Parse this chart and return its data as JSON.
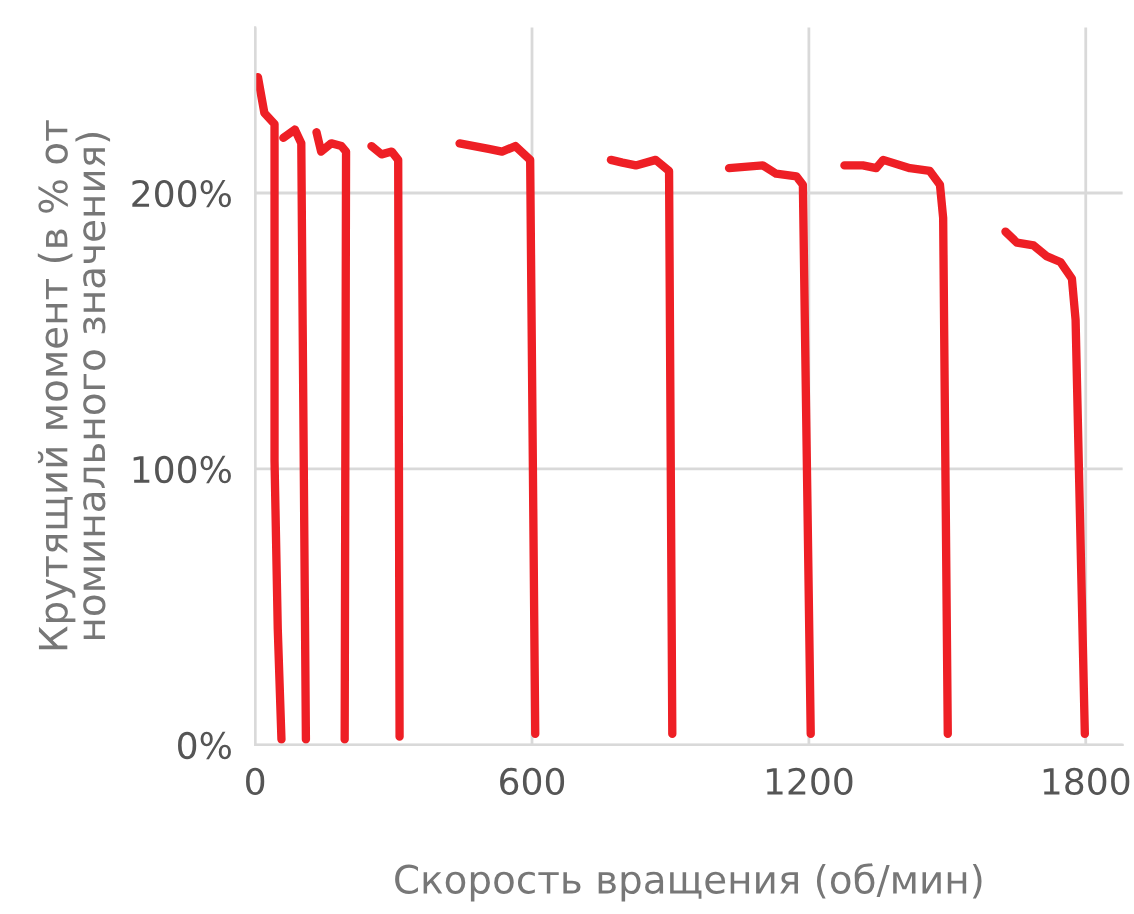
{
  "chart_data": {
    "type": "line",
    "xlabel": "Скорость вращения (об/мин)",
    "ylabel": "Крутящий момент (в % от\nноминального значения)",
    "xlim": [
      0,
      1880
    ],
    "ylim": [
      0,
      260
    ],
    "xticks": [
      0,
      600,
      1200,
      1800
    ],
    "yticks": [
      {
        "value": 0,
        "label": "0%"
      },
      {
        "value": 100,
        "label": "100%"
      },
      {
        "value": 200,
        "label": "200%"
      }
    ],
    "grid": true,
    "marker": "none",
    "line_style": "solid",
    "series": [
      {
        "color": "#ee1f25",
        "x": [
          6,
          20,
          42,
          42,
          49,
          57
        ],
        "values": [
          242,
          229,
          225,
          103,
          42,
          2
        ]
      },
      {
        "color": "#ee1f25",
        "x": [
          61,
          86,
          100,
          103,
          110
        ],
        "values": [
          220,
          223,
          218,
          152,
          2
        ]
      },
      {
        "color": "#ee1f25",
        "x": [
          133,
          143,
          165,
          187,
          197,
          194
        ],
        "values": [
          222,
          215,
          218,
          217,
          215,
          2
        ]
      },
      {
        "color": "#ee1f25",
        "x": [
          252,
          274,
          296,
          310,
          313
        ],
        "values": [
          217,
          214,
          215,
          212,
          3
        ]
      },
      {
        "color": "#ee1f25",
        "x": [
          443,
          506,
          535,
          564,
          596,
          607
        ],
        "values": [
          218,
          216,
          215,
          217,
          212,
          4
        ]
      },
      {
        "color": "#ee1f25",
        "x": [
          771,
          796,
          825,
          868,
          897,
          904
        ],
        "values": [
          212,
          211,
          210,
          212,
          208,
          4
        ]
      },
      {
        "color": "#ee1f25",
        "x": [
          1027,
          1100,
          1129,
          1173,
          1187,
          1204
        ],
        "values": [
          209,
          210,
          207,
          206,
          203,
          4
        ]
      },
      {
        "color": "#ee1f25",
        "x": [
          1277,
          1317,
          1346,
          1361,
          1419,
          1462,
          1484,
          1491,
          1501
        ],
        "values": [
          210,
          210,
          209,
          212,
          209,
          208,
          203,
          191,
          4
        ]
      },
      {
        "color": "#ee1f25",
        "x": [
          1626,
          1651,
          1687,
          1716,
          1745,
          1770,
          1778,
          1798
        ],
        "values": [
          186,
          182,
          181,
          177,
          175,
          169,
          154,
          4
        ]
      }
    ]
  }
}
